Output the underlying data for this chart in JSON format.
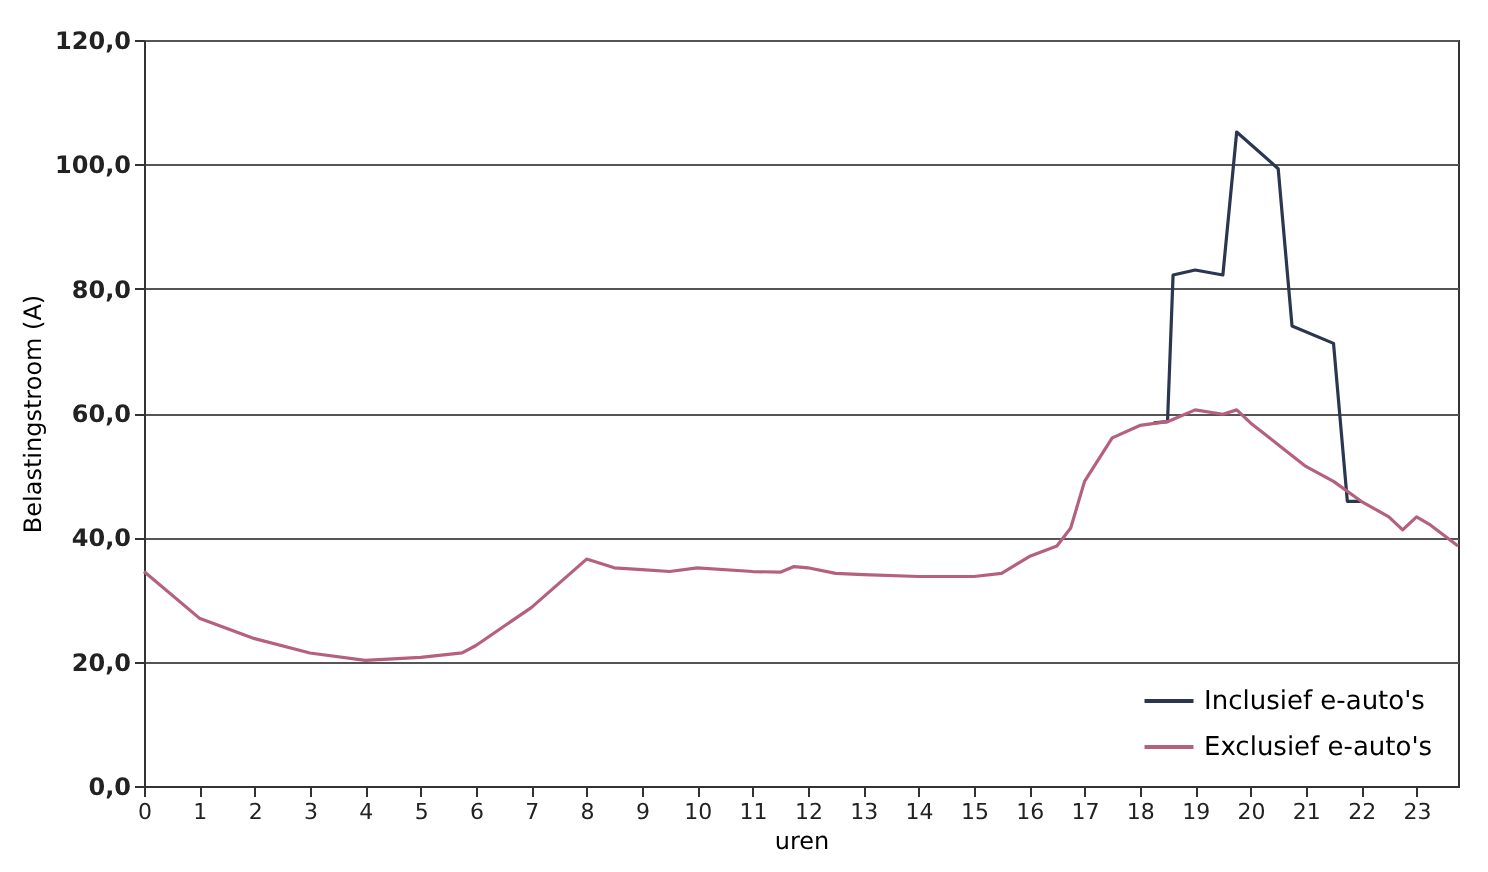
{
  "chart_data": {
    "type": "line",
    "xlabel": "uren",
    "ylabel": "Belastingstroom (A)",
    "xlim": [
      0,
      23.75
    ],
    "xticks": [
      0,
      1,
      2,
      3,
      4,
      5,
      6,
      7,
      8,
      9,
      10,
      11,
      12,
      13,
      14,
      15,
      16,
      17,
      18,
      19,
      20,
      21,
      22,
      23
    ],
    "ylim": [
      0,
      120
    ],
    "yticks": [
      {
        "value": 0,
        "label": "0,0"
      },
      {
        "value": 20,
        "label": "20,0"
      },
      {
        "value": 40,
        "label": "40,0"
      },
      {
        "value": 60,
        "label": "60,0"
      },
      {
        "value": 80,
        "label": "80,0"
      },
      {
        "value": 100,
        "label": "100,0"
      },
      {
        "value": 120,
        "label": "120,0"
      }
    ],
    "grid": "y",
    "legend": "bottom right",
    "marker": "none",
    "line_style": "solid",
    "series": [
      {
        "name": "Inclusief e-auto's",
        "color": "#2b3650",
        "x": [
          18.25,
          18.5,
          18.6,
          19,
          19.5,
          19.75,
          20.5,
          20.75,
          21.5,
          21.75,
          22
        ],
        "values": [
          58.4,
          58.6,
          82.2,
          83,
          82.2,
          105.2,
          99.3,
          74,
          71.2,
          45.8,
          45.8
        ]
      },
      {
        "name": "Exclusief e-auto's",
        "color": "#b5607f",
        "x": [
          0,
          1,
          2,
          3,
          4,
          5,
          5.75,
          6,
          7,
          8,
          8.5,
          9,
          9.5,
          10,
          11,
          11.5,
          11.75,
          12,
          12.5,
          13,
          14,
          15,
          15.5,
          16,
          16.5,
          16.75,
          17,
          17.5,
          18,
          18.5,
          19,
          19.5,
          19.75,
          20,
          20.5,
          21,
          21.5,
          22,
          22.5,
          22.75,
          23,
          23.25,
          23.75
        ],
        "values": [
          34.5,
          27,
          23.7,
          21.4,
          20.2,
          20.7,
          21.4,
          22.6,
          28.7,
          36.5,
          35.1,
          34.8,
          34.5,
          35.1,
          34.5,
          34.4,
          35.3,
          35.1,
          34.2,
          34,
          33.7,
          33.7,
          34.2,
          36.9,
          38.6,
          41.5,
          49,
          56,
          58,
          58.6,
          60.5,
          59.8,
          60.5,
          58.4,
          54.9,
          51.4,
          49,
          45.8,
          43.3,
          41.2,
          43.3,
          42,
          38.6
        ]
      }
    ]
  }
}
